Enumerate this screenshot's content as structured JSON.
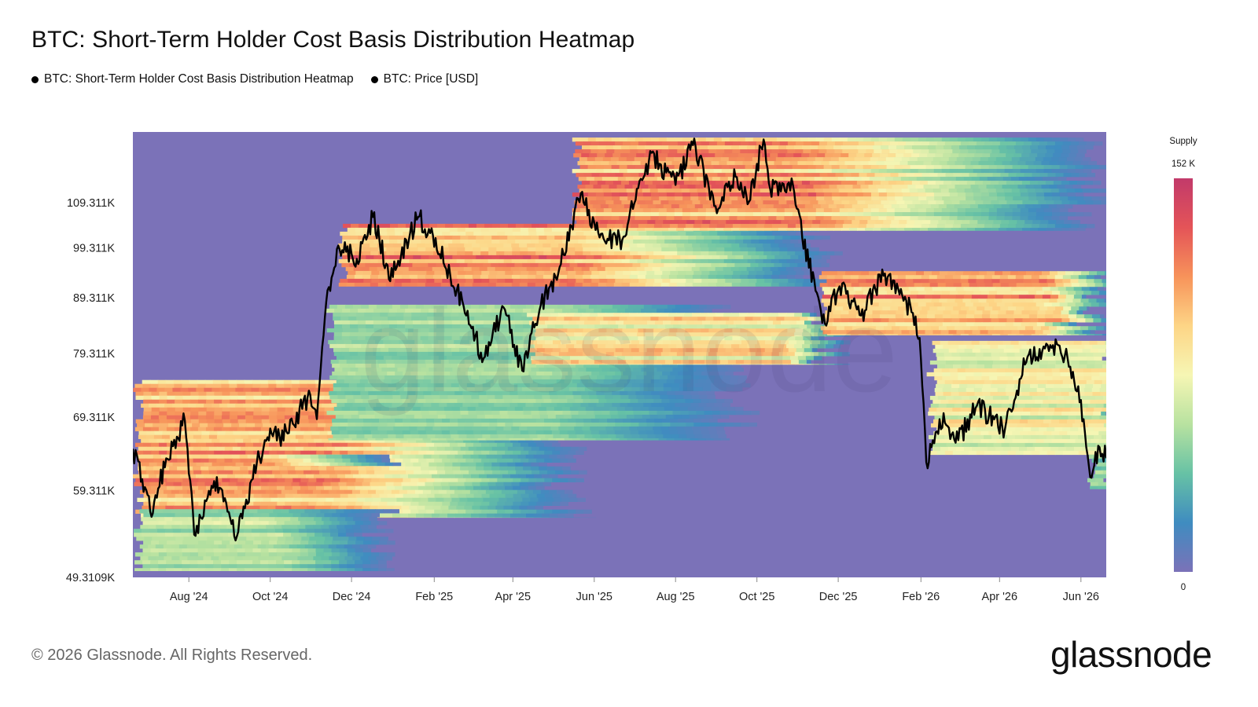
{
  "title": "BTC: Short-Term Holder Cost Basis Distribution Heatmap",
  "legend": [
    {
      "label": "BTC: Short-Term Holder Cost Basis Distribution Heatmap",
      "color": "#000000"
    },
    {
      "label": "BTC: Price [USD]",
      "color": "#000000"
    }
  ],
  "colorbar": {
    "title": "Supply",
    "max_label": "152 K",
    "min_label": "0",
    "stops": [
      "#7b72b8",
      "#3f8cc0",
      "#67c2a5",
      "#b8e2a0",
      "#f6f6b4",
      "#fdd586",
      "#f7935a",
      "#e45458",
      "#c23a6a"
    ]
  },
  "footer": "© 2026 Glassnode. All Rights Reserved.",
  "brand": "glassnode",
  "watermark": "glassnode",
  "chart_data": {
    "type": "heatmap",
    "x_ticks": [
      "Aug '24",
      "Oct '24",
      "Dec '24",
      "Feb '25",
      "Apr '25",
      "Jun '25",
      "Aug '25",
      "Oct '25",
      "Dec '25",
      "Feb '26",
      "Apr '26",
      "Jun '26"
    ],
    "x_tick_dates": [
      "2024-08-01",
      "2024-10-01",
      "2024-12-01",
      "2025-02-01",
      "2025-04-01",
      "2025-06-01",
      "2025-08-01",
      "2025-10-01",
      "2025-12-01",
      "2026-02-01",
      "2026-04-01",
      "2026-06-01"
    ],
    "x_range": [
      "2024-06-20",
      "2026-06-20"
    ],
    "y_ticks": [
      "109.311K",
      "99.311K",
      "89.311K",
      "79.311K",
      "69.311K",
      "59.311K",
      "49.3109K"
    ],
    "y_tick_values": [
      109311,
      99311,
      89311,
      79311,
      69311,
      59311,
      49310.9
    ],
    "y_scale": "log",
    "y_range": [
      49310.9,
      127000
    ],
    "background_color": "#7b72b8",
    "price_color": "#000000",
    "price_series": {
      "name": "BTC: Price [USD]",
      "points": [
        [
          "2024-06-20",
          64800
        ],
        [
          "2024-07-05",
          56500
        ],
        [
          "2024-07-15",
          63500
        ],
        [
          "2024-07-29",
          68800
        ],
        [
          "2024-08-05",
          54000
        ],
        [
          "2024-08-20",
          60500
        ],
        [
          "2024-09-06",
          53800
        ],
        [
          "2024-09-27",
          66000
        ],
        [
          "2024-10-15",
          67000
        ],
        [
          "2024-10-29",
          72300
        ],
        [
          "2024-11-05",
          69000
        ],
        [
          "2024-11-12",
          88500
        ],
        [
          "2024-11-22",
          99000
        ],
        [
          "2024-12-05",
          97000
        ],
        [
          "2024-12-17",
          106000
        ],
        [
          "2024-12-30",
          92500
        ],
        [
          "2025-01-20",
          106000
        ],
        [
          "2025-01-31",
          102000
        ],
        [
          "2025-02-25",
          86000
        ],
        [
          "2025-03-10",
          78500
        ],
        [
          "2025-03-25",
          87500
        ],
        [
          "2025-04-08",
          76500
        ],
        [
          "2025-04-22",
          88000
        ],
        [
          "2025-05-05",
          94000
        ],
        [
          "2025-05-22",
          111500
        ],
        [
          "2025-06-05",
          101500
        ],
        [
          "2025-06-22",
          101000
        ],
        [
          "2025-07-14",
          121500
        ],
        [
          "2025-08-01",
          113500
        ],
        [
          "2025-08-14",
          123500
        ],
        [
          "2025-08-31",
          108500
        ],
        [
          "2025-09-15",
          115500
        ],
        [
          "2025-09-25",
          109500
        ],
        [
          "2025-10-06",
          125000
        ],
        [
          "2025-10-11",
          112500
        ],
        [
          "2025-10-28",
          113500
        ],
        [
          "2025-11-04",
          101500
        ],
        [
          "2025-11-21",
          84500
        ],
        [
          "2025-12-02",
          91500
        ],
        [
          "2025-12-18",
          86000
        ],
        [
          "2026-01-05",
          94000
        ],
        [
          "2026-01-20",
          89500
        ],
        [
          "2026-01-31",
          82000
        ],
        [
          "2026-02-05",
          63000
        ],
        [
          "2026-02-15",
          69000
        ],
        [
          "2026-03-01",
          66000
        ],
        [
          "2026-03-15",
          71000
        ],
        [
          "2026-04-05",
          67500
        ],
        [
          "2026-04-20",
          77500
        ],
        [
          "2026-05-06",
          81000
        ],
        [
          "2026-05-20",
          79000
        ],
        [
          "2026-05-30",
          74000
        ],
        [
          "2026-06-08",
          61000
        ],
        [
          "2026-06-15",
          65000
        ],
        [
          "2026-06-20",
          63500
        ]
      ]
    },
    "supply_bands": [
      {
        "start": "2024-06-20",
        "end": "2024-11-10",
        "fade_end": "2025-05-20",
        "price_low": 56000,
        "price_high": 75000,
        "intensity": 0.9
      },
      {
        "start": "2024-06-20",
        "end": "2024-09-20",
        "fade_end": "2025-01-20",
        "price_low": 62500,
        "price_high": 64000,
        "intensity": 1.0
      },
      {
        "start": "2024-06-20",
        "end": "2024-09-30",
        "fade_end": "2024-12-30",
        "price_low": 50000,
        "price_high": 57000,
        "intensity": 0.5
      },
      {
        "start": "2024-11-12",
        "end": "2025-04-20",
        "fade_end": "2025-09-30",
        "price_low": 66000,
        "price_high": 88000,
        "intensity": 0.45
      },
      {
        "start": "2024-11-20",
        "end": "2025-05-10",
        "fade_end": "2025-11-25",
        "price_low": 91500,
        "price_high": 104500,
        "intensity": 0.95
      },
      {
        "start": "2025-04-10",
        "end": "2025-10-20",
        "fade_end": "2025-11-25",
        "price_low": 77500,
        "price_high": 86500,
        "intensity": 0.75
      },
      {
        "start": "2025-05-15",
        "end": "2025-10-25",
        "fade_end": "2026-06-20",
        "price_low": 103000,
        "price_high": 125500,
        "intensity": 0.95
      },
      {
        "start": "2025-11-15",
        "end": "2026-05-01",
        "fade_end": "2026-06-20",
        "price_low": 82500,
        "price_high": 94500,
        "intensity": 0.95
      },
      {
        "start": "2026-02-05",
        "end": "2026-06-20",
        "fade_end": "2026-06-20",
        "price_low": 64000,
        "price_high": 81500,
        "intensity": 0.65
      },
      {
        "start": "2026-06-05",
        "end": "2026-06-20",
        "fade_end": "2026-06-20",
        "price_low": 59500,
        "price_high": 64000,
        "intensity": 0.4
      }
    ]
  }
}
